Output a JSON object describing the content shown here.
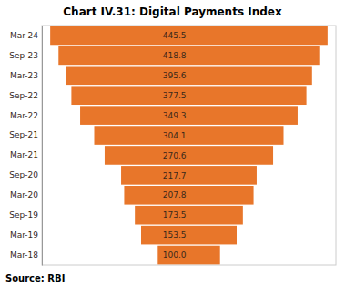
{
  "chart_data": {
    "type": "funnel",
    "title": "Chart IV.31: Digital Payments Index",
    "categories": [
      "Mar-24",
      "Sep-23",
      "Mar-23",
      "Sep-22",
      "Mar-22",
      "Sep-21",
      "Mar-21",
      "Sep-20",
      "Mar-20",
      "Sep-19",
      "Mar-19",
      "Mar-18"
    ],
    "values": [
      445.5,
      418.8,
      395.6,
      377.5,
      349.3,
      304.1,
      270.6,
      217.7,
      207.8,
      173.5,
      153.5,
      100.0
    ],
    "value_labels": [
      "445.5",
      "418.8",
      "395.6",
      "377.5",
      "349.3",
      "304.1",
      "270.6",
      "217.7",
      "207.8",
      "173.5",
      "153.5",
      "100.0"
    ],
    "data_labels": true,
    "color": "#E8762A",
    "xlim": [
      -236.115,
      236.115
    ],
    "tick_labels": "y",
    "source": "Source: RBI"
  }
}
